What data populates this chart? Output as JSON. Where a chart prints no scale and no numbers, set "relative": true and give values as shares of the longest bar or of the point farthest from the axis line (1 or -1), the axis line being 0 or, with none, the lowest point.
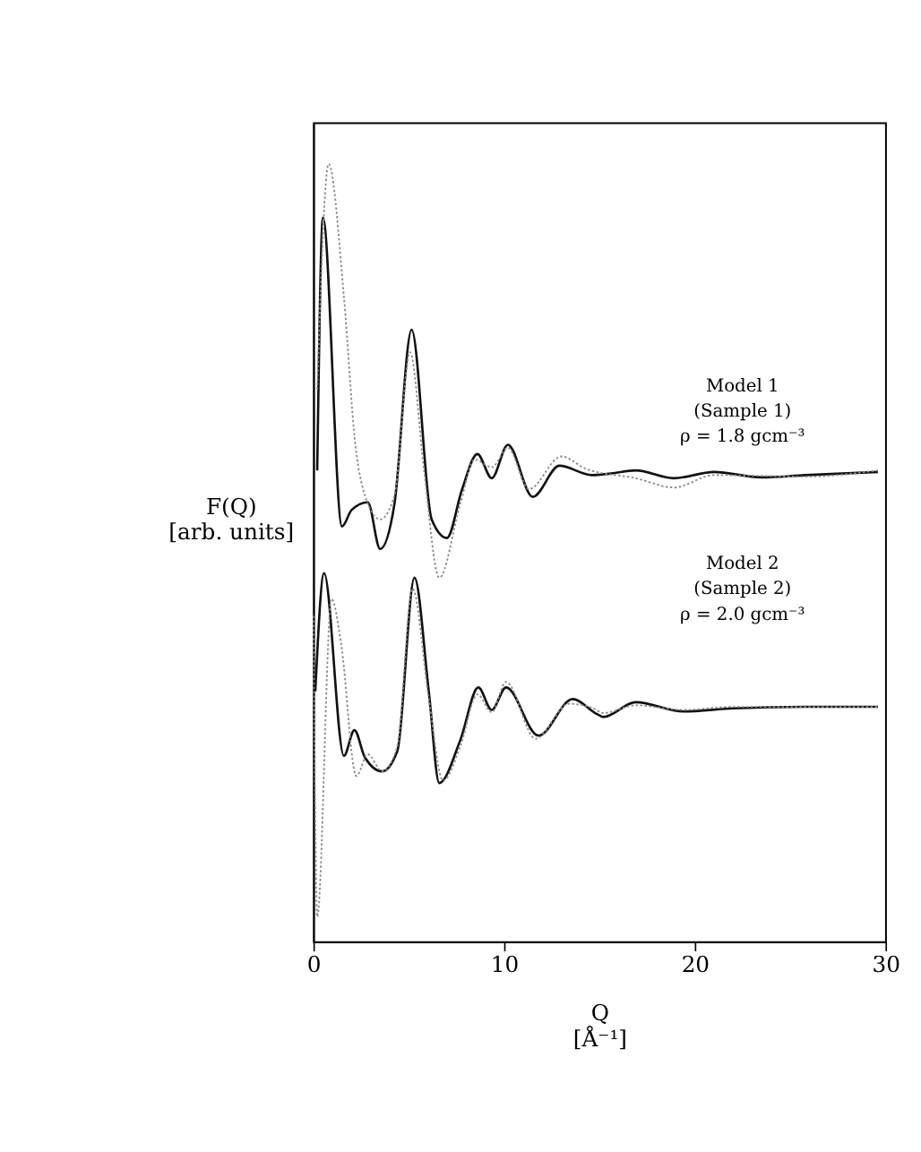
{
  "chart_data": {
    "type": "line",
    "relative": true,
    "xlabel": "Q\n[Å⁻¹]",
    "ylabel": "F(Q)\n[arb. units]",
    "xlim": [
      0,
      30
    ],
    "xticks": [
      0,
      10,
      20,
      30
    ],
    "grid": false,
    "marker": "none",
    "annotations": [
      "Model 1",
      "(Sample 1)",
      "ρ = 1.8 gcm⁻³",
      "Model 2",
      "(Sample 2)",
      "ρ = 2.0 gcm⁻³"
    ],
    "series": [
      {
        "color": "#111111",
        "line_style": "solid",
        "x": [
          0.2,
          0.5,
          1.5,
          2.0,
          2.85,
          3.5,
          4.25,
          5.15,
          6.2,
          7.0,
          7.8,
          8.6,
          9.35,
          10.2,
          11.5,
          12.9,
          14.6,
          15.6,
          16.9,
          18.9,
          21,
          23.5,
          25.8,
          29.6
        ],
        "values": [
          0.606,
          0.931,
          0.534,
          0.555,
          0.565,
          0.505,
          0.563,
          0.787,
          0.543,
          0.519,
          0.582,
          0.627,
          0.596,
          0.639,
          0.572,
          0.612,
          0.6,
          0.602,
          0.606,
          0.596,
          0.604,
          0.597,
          0.6,
          0.604
        ]
      },
      {
        "color": "#888888",
        "line_style": "dotted",
        "x": [
          0.2,
          0.8,
          1.6,
          2.2,
          2.7,
          3.5,
          4.25,
          5.07,
          5.8,
          6.6,
          7.7,
          8.45,
          9.35,
          10.2,
          11.3,
          13.0,
          14.3,
          16.9,
          18.9,
          21,
          25.8,
          29.6
        ],
        "values": [
          0.71,
          1.0,
          0.829,
          0.639,
          0.574,
          0.543,
          0.574,
          0.758,
          0.606,
          0.468,
          0.563,
          0.62,
          0.61,
          0.635,
          0.582,
          0.624,
          0.608,
          0.596,
          0.584,
          0.6,
          0.598,
          0.606
        ]
      },
      {
        "color": "#111111",
        "line_style": "solid",
        "x": [
          0.1,
          0.56,
          1.6,
          2.15,
          2.7,
          3.6,
          4.4,
          5.3,
          6.05,
          6.6,
          7.7,
          8.65,
          9.35,
          10.1,
          11.8,
          13.6,
          14.85,
          15.2,
          16.9,
          19.4,
          22,
          25.8,
          29.6
        ],
        "values": [
          0.322,
          0.474,
          0.239,
          0.272,
          0.237,
          0.219,
          0.245,
          0.468,
          0.322,
          0.204,
          0.259,
          0.327,
          0.298,
          0.327,
          0.265,
          0.312,
          0.293,
          0.289,
          0.308,
          0.296,
          0.3,
          0.302,
          0.302
        ]
      },
      {
        "color": "#888888",
        "line_style": "dotted",
        "x": [
          0.0,
          0.2,
          0.95,
          1.45,
          2.25,
          2.85,
          3.6,
          4.4,
          5.2,
          6.05,
          6.8,
          7.7,
          8.6,
          9.35,
          10.1,
          11.65,
          13.4,
          14.7,
          15.2,
          16.9,
          19.4,
          22,
          29.6
        ],
        "values": [
          0.419,
          0.032,
          0.441,
          0.384,
          0.213,
          0.241,
          0.219,
          0.251,
          0.454,
          0.313,
          0.207,
          0.251,
          0.318,
          0.295,
          0.334,
          0.261,
          0.306,
          0.3,
          0.294,
          0.304,
          0.298,
          0.302,
          0.302
        ]
      }
    ]
  }
}
